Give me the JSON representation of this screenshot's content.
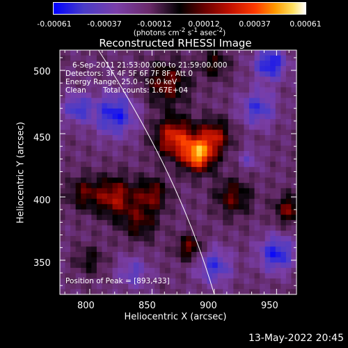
{
  "colorbar": {
    "ticks": [
      "-0.00061",
      "-0.00037",
      "-0.00012",
      "0.00012",
      "0.00037",
      "0.00061"
    ],
    "units_prefix": "(photons cm",
    "units_sup1": "-2",
    "units_mid": " s",
    "units_sup2": "-1",
    "units_mid2": " asec",
    "units_sup3": "-2",
    "units_suffix": ")"
  },
  "info": {
    "time_range": "6-Sep-2011 21:53:00.000 to 21:59:00.000",
    "detectors": "Detectors: 3F 4F 5F 6F 7F 8F, Att 0",
    "energy": "Energy Range: 25.0 - 50.0 keV",
    "method": "Clean",
    "counts": "Total counts: 1.67E+04",
    "peak": "Position of Peak = [893,433]"
  },
  "footer": "13-May-2022 20:45",
  "chart_data": {
    "type": "heatmap",
    "title": "Reconstructed RHESSI Image",
    "xlabel": "Heliocentric X (arcsec)",
    "ylabel": "Heliocentric Y (arcsec)",
    "xlim": [
      776,
      966
    ],
    "ylim": [
      323,
      516
    ],
    "xticks": [
      "800",
      "850",
      "900",
      "950"
    ],
    "yticks": [
      "350",
      "400",
      "450",
      "500"
    ],
    "zlim": [
      -0.00061,
      0.00061
    ],
    "peak": [
      893,
      433
    ],
    "limb_curve": {
      "x": [
        807,
        850,
        880,
        900
      ],
      "y": [
        516,
        450,
        390,
        323
      ]
    },
    "blobs": [
      {
        "x": 887,
        "y": 433,
        "sigma": 9,
        "amp": 0.00061
      },
      {
        "x": 868,
        "y": 447,
        "sigma": 11,
        "amp": 0.00046
      },
      {
        "x": 900,
        "y": 448,
        "sigma": 9,
        "amp": 0.00037
      },
      {
        "x": 820,
        "y": 400,
        "sigma": 11,
        "amp": 0.00037
      },
      {
        "x": 795,
        "y": 403,
        "sigma": 9,
        "amp": 0.00024
      },
      {
        "x": 850,
        "y": 402,
        "sigma": 9,
        "amp": 0.0003
      },
      {
        "x": 862,
        "y": 490,
        "sigma": 12,
        "amp": 0.0003
      },
      {
        "x": 840,
        "y": 380,
        "sigma": 10,
        "amp": 0.00024
      },
      {
        "x": 915,
        "y": 400,
        "sigma": 10,
        "amp": 0.00027
      },
      {
        "x": 960,
        "y": 390,
        "sigma": 8,
        "amp": 0.0003
      },
      {
        "x": 880,
        "y": 360,
        "sigma": 7,
        "amp": 0.0003
      },
      {
        "x": 800,
        "y": 350,
        "sigma": 8,
        "amp": 0.00017
      },
      {
        "x": 900,
        "y": 505,
        "sigma": 8,
        "amp": 0.00022
      },
      {
        "x": 820,
        "y": 465,
        "sigma": 12,
        "amp": -0.00037
      },
      {
        "x": 790,
        "y": 470,
        "sigma": 8,
        "amp": -0.0003
      },
      {
        "x": 935,
        "y": 470,
        "sigma": 10,
        "amp": -0.0003
      },
      {
        "x": 945,
        "y": 505,
        "sigma": 9,
        "amp": -0.0004
      },
      {
        "x": 900,
        "y": 345,
        "sigma": 10,
        "amp": -0.0003
      },
      {
        "x": 950,
        "y": 355,
        "sigma": 10,
        "amp": -0.00037
      },
      {
        "x": 835,
        "y": 340,
        "sigma": 9,
        "amp": -0.00022
      },
      {
        "x": 928,
        "y": 430,
        "sigma": 6,
        "amp": -0.00017
      }
    ]
  }
}
